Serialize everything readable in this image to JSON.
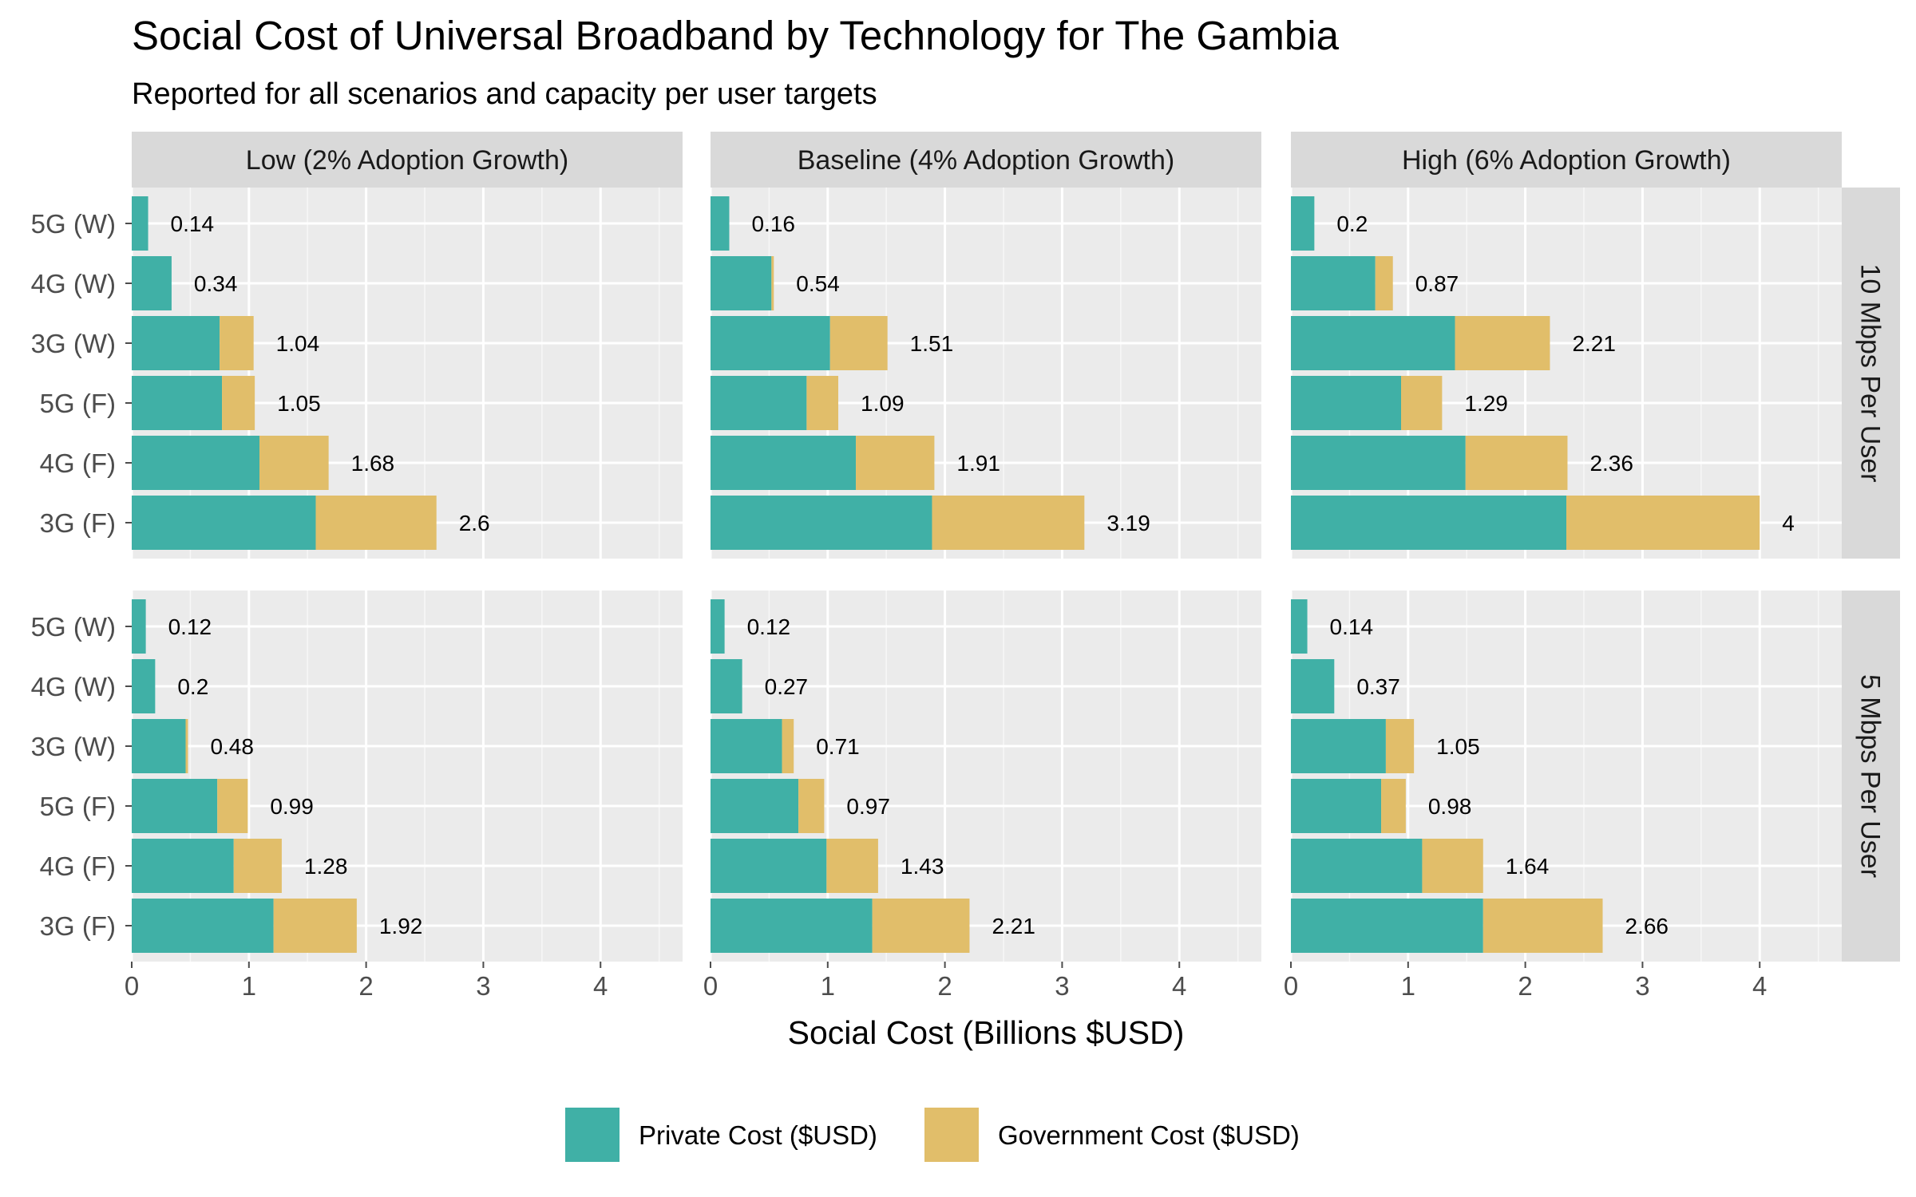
{
  "chart_data": {
    "type": "bar",
    "orientation": "horizontal",
    "stacked": true,
    "title": "Social Cost of Universal Broadband by Technology for The Gambia",
    "subtitle": "Reported for all scenarios and capacity per user targets",
    "xlabel": "Social Cost (Billions $USD)",
    "xlim": [
      0,
      4.7
    ],
    "xticks": [
      0,
      1,
      2,
      3,
      4
    ],
    "grid": true,
    "legend_position": "bottom",
    "categories": [
      "5G (W)",
      "4G (W)",
      "3G (W)",
      "5G (F)",
      "4G (F)",
      "3G (F)"
    ],
    "columns": [
      "Low (2% Adoption Growth)",
      "Baseline (4% Adoption Growth)",
      "High (6% Adoption Growth)"
    ],
    "rows": [
      "10 Mbps Per User",
      "5 Mbps Per User"
    ],
    "series": [
      {
        "name": "Private Cost ($USD)",
        "color": "#40B0A6"
      },
      {
        "name": "Government Cost ($USD)",
        "color": "#E1BE6A"
      }
    ],
    "panels": [
      {
        "row": 0,
        "col": 0,
        "private": [
          0.14,
          0.34,
          0.75,
          0.77,
          1.09,
          1.57
        ],
        "government": [
          0.0,
          0.0,
          0.29,
          0.28,
          0.59,
          1.03
        ],
        "labels": [
          "0.14",
          "0.34",
          "1.04",
          "1.05",
          "1.68",
          "2.6"
        ]
      },
      {
        "row": 0,
        "col": 1,
        "private": [
          0.16,
          0.52,
          1.02,
          0.82,
          1.24,
          1.89
        ],
        "government": [
          0.0,
          0.02,
          0.49,
          0.27,
          0.67,
          1.3
        ],
        "labels": [
          "0.16",
          "0.54",
          "1.51",
          "1.09",
          "1.91",
          "3.19"
        ]
      },
      {
        "row": 0,
        "col": 2,
        "private": [
          0.2,
          0.72,
          1.4,
          0.94,
          1.49,
          2.35
        ],
        "government": [
          0.0,
          0.15,
          0.81,
          0.35,
          0.87,
          1.65
        ],
        "labels": [
          "0.2",
          "0.87",
          "2.21",
          "1.29",
          "2.36",
          "4"
        ]
      },
      {
        "row": 1,
        "col": 0,
        "private": [
          0.12,
          0.2,
          0.46,
          0.73,
          0.87,
          1.21
        ],
        "government": [
          0.0,
          0.0,
          0.02,
          0.26,
          0.41,
          0.71
        ],
        "labels": [
          "0.12",
          "0.2",
          "0.48",
          "0.99",
          "1.28",
          "1.92"
        ]
      },
      {
        "row": 1,
        "col": 1,
        "private": [
          0.12,
          0.27,
          0.61,
          0.75,
          0.99,
          1.38
        ],
        "government": [
          0.0,
          0.0,
          0.1,
          0.22,
          0.44,
          0.83
        ],
        "labels": [
          "0.12",
          "0.27",
          "0.71",
          "0.97",
          "1.43",
          "2.21"
        ]
      },
      {
        "row": 1,
        "col": 2,
        "private": [
          0.14,
          0.37,
          0.81,
          0.77,
          1.12,
          1.64
        ],
        "government": [
          0.0,
          0.0,
          0.24,
          0.21,
          0.52,
          1.02
        ],
        "labels": [
          "0.14",
          "0.37",
          "1.05",
          "0.98",
          "1.64",
          "2.66"
        ]
      }
    ]
  }
}
